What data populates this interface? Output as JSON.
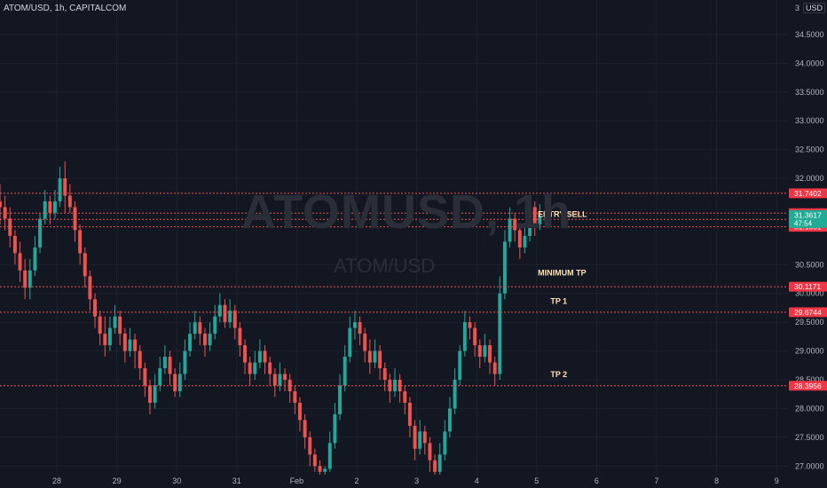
{
  "header": {
    "symbol_title": "ATOM/USD, 1h, CAPITALCOM",
    "currency": "USD"
  },
  "watermark": {
    "main": "ATOMUSD, 1h",
    "sub": "ATOM/USD"
  },
  "colors": {
    "background": "#131722",
    "up": "#26a69a",
    "down": "#ef5350",
    "grid": "#1e222d",
    "level_line": "#ef5350",
    "axis_text": "#b2b5be",
    "annotation_text": "#ffe0b2",
    "price_tag_text": "#ffffff"
  },
  "chart_data": {
    "type": "candlestick",
    "y_axis": {
      "ticks": [
        "34.5000",
        "34.0000",
        "33.5000",
        "33.0000",
        "32.5000",
        "32.0000",
        "30.5000",
        "30.0000",
        "29.5000",
        "29.0000",
        "28.5000",
        "28.0000",
        "27.5000",
        "27.0000"
      ],
      "range": [
        26.85,
        35.1
      ],
      "top_label_partial": "3"
    },
    "x_axis": {
      "ticks": [
        "28",
        "29",
        "30",
        "31",
        "Feb",
        "2",
        "3",
        "4",
        "5",
        "6",
        "7",
        "8",
        "9"
      ]
    },
    "levels": [
      {
        "price": 31.7402,
        "label": "31.7402",
        "bg": "#f23645"
      },
      {
        "price": 31.3959,
        "label": "31.3959",
        "bg": "#f23645"
      },
      {
        "price": 31.2877,
        "label": "31.2877",
        "bg": "#f23645"
      },
      {
        "price": 31.1581,
        "label": "31.1581",
        "bg": "#f23645"
      },
      {
        "price": 30.1171,
        "label": "30.1171",
        "bg": "#f23645"
      },
      {
        "price": 29.6744,
        "label": "29.6744",
        "bg": "#f23645"
      },
      {
        "price": 28.3956,
        "label": "28.3956",
        "bg": "#f23645"
      }
    ],
    "current_price": {
      "price": 31.3617,
      "label": "31.3617",
      "countdown": "47:54",
      "bg": "#22ab94"
    },
    "annotations": [
      {
        "text": "ENTRY SELL",
        "price": 31.33,
        "x_day": 8.02
      },
      {
        "text": "MINIMUM TP",
        "price": 30.31,
        "x_day": 8.02
      },
      {
        "text": "TP 1",
        "price": 29.82,
        "x_day": 8.23
      },
      {
        "text": "TP 2",
        "price": 28.55,
        "x_day": 8.23
      }
    ],
    "candles": [
      [
        31.6,
        31.5,
        31.9,
        31.2
      ],
      [
        31.5,
        31.3,
        31.7,
        31.1
      ],
      [
        31.3,
        31.0,
        31.5,
        30.8
      ],
      [
        31.0,
        30.7,
        31.1,
        30.5
      ],
      [
        30.7,
        30.4,
        30.9,
        30.2
      ],
      [
        30.4,
        30.1,
        30.6,
        29.9
      ],
      [
        30.1,
        30.4,
        30.6,
        29.9
      ],
      [
        30.4,
        30.8,
        31.0,
        30.3
      ],
      [
        30.8,
        31.3,
        31.4,
        30.7
      ],
      [
        31.3,
        31.6,
        31.8,
        31.2
      ],
      [
        31.6,
        31.4,
        31.7,
        31.2
      ],
      [
        31.4,
        31.6,
        31.8,
        31.3
      ],
      [
        31.6,
        32.0,
        32.2,
        31.5
      ],
      [
        32.0,
        31.7,
        32.3,
        31.4
      ],
      [
        31.7,
        31.5,
        31.9,
        31.4
      ],
      [
        31.5,
        31.1,
        31.6,
        30.9
      ],
      [
        31.1,
        30.7,
        31.2,
        30.5
      ],
      [
        30.7,
        30.3,
        30.8,
        30.1
      ],
      [
        30.3,
        29.9,
        30.4,
        29.7
      ],
      [
        29.9,
        29.6,
        30.0,
        29.4
      ],
      [
        29.6,
        29.3,
        29.7,
        29.1
      ],
      [
        29.3,
        29.1,
        29.6,
        28.9
      ],
      [
        29.1,
        29.4,
        29.6,
        29.0
      ],
      [
        29.4,
        29.6,
        29.8,
        29.3
      ],
      [
        29.6,
        29.3,
        29.7,
        29.1
      ],
      [
        29.3,
        29.0,
        29.4,
        28.8
      ],
      [
        29.0,
        29.2,
        29.4,
        28.9
      ],
      [
        29.2,
        29.0,
        29.3,
        28.7
      ],
      [
        29.0,
        28.7,
        29.1,
        28.5
      ],
      [
        28.7,
        28.4,
        28.8,
        28.2
      ],
      [
        28.4,
        28.1,
        28.5,
        27.9
      ],
      [
        28.1,
        28.4,
        28.6,
        28.0
      ],
      [
        28.4,
        28.7,
        28.9,
        28.3
      ],
      [
        28.7,
        28.9,
        29.1,
        28.6
      ],
      [
        28.9,
        28.6,
        29.0,
        28.4
      ],
      [
        28.6,
        28.3,
        28.7,
        28.2
      ],
      [
        28.3,
        28.6,
        28.8,
        28.2
      ],
      [
        28.6,
        29.0,
        29.2,
        28.5
      ],
      [
        29.0,
        29.3,
        29.5,
        28.9
      ],
      [
        29.3,
        29.5,
        29.7,
        29.2
      ],
      [
        29.5,
        29.3,
        29.6,
        29.1
      ],
      [
        29.3,
        29.1,
        29.4,
        28.9
      ],
      [
        29.1,
        29.3,
        29.5,
        29.0
      ],
      [
        29.3,
        29.6,
        29.8,
        29.2
      ],
      [
        29.6,
        29.8,
        30.0,
        29.5
      ],
      [
        29.8,
        29.5,
        29.9,
        29.4
      ],
      [
        29.5,
        29.7,
        29.9,
        29.4
      ],
      [
        29.7,
        29.4,
        29.8,
        29.2
      ],
      [
        29.4,
        29.1,
        29.5,
        28.9
      ],
      [
        29.1,
        28.8,
        29.2,
        28.6
      ],
      [
        28.8,
        28.6,
        28.9,
        28.4
      ],
      [
        28.6,
        28.8,
        29.0,
        28.5
      ],
      [
        28.8,
        29.0,
        29.2,
        28.7
      ],
      [
        29.0,
        28.8,
        29.1,
        28.6
      ],
      [
        28.8,
        28.6,
        28.9,
        28.4
      ],
      [
        28.6,
        28.4,
        28.7,
        28.2
      ],
      [
        28.4,
        28.6,
        28.8,
        28.3
      ],
      [
        28.6,
        28.5,
        28.7,
        28.3
      ],
      [
        28.5,
        28.3,
        28.6,
        28.1
      ],
      [
        28.3,
        28.1,
        28.4,
        27.9
      ],
      [
        28.1,
        27.8,
        28.2,
        27.6
      ],
      [
        27.8,
        27.5,
        27.9,
        27.3
      ],
      [
        27.5,
        27.2,
        27.6,
        27.0
      ],
      [
        27.2,
        27.0,
        27.3,
        26.9
      ],
      [
        27.0,
        26.9,
        27.1,
        26.8
      ],
      [
        26.9,
        26.95,
        27.0,
        26.85
      ],
      [
        26.95,
        27.4,
        27.6,
        26.9
      ],
      [
        27.4,
        27.9,
        28.1,
        27.3
      ],
      [
        27.9,
        28.4,
        28.6,
        27.8
      ],
      [
        28.4,
        28.9,
        29.1,
        28.3
      ],
      [
        28.9,
        29.4,
        29.6,
        28.8
      ],
      [
        29.4,
        29.5,
        29.7,
        29.2
      ],
      [
        29.5,
        29.3,
        29.6,
        29.1
      ],
      [
        29.3,
        29.0,
        29.4,
        28.8
      ],
      [
        29.0,
        28.8,
        29.2,
        28.6
      ],
      [
        28.8,
        29.0,
        29.2,
        28.7
      ],
      [
        29.0,
        28.7,
        29.1,
        28.5
      ],
      [
        28.7,
        28.5,
        28.8,
        28.3
      ],
      [
        28.5,
        28.3,
        28.6,
        28.1
      ],
      [
        28.3,
        28.5,
        28.7,
        28.2
      ],
      [
        28.5,
        28.3,
        28.6,
        28.1
      ],
      [
        28.3,
        28.1,
        28.4,
        27.9
      ],
      [
        28.1,
        27.7,
        28.2,
        27.5
      ],
      [
        27.7,
        27.3,
        27.8,
        27.1
      ],
      [
        27.3,
        27.6,
        27.8,
        27.2
      ],
      [
        27.6,
        27.4,
        27.7,
        27.2
      ],
      [
        27.4,
        27.1,
        27.5,
        26.9
      ],
      [
        27.1,
        26.9,
        27.2,
        26.8
      ],
      [
        26.9,
        27.2,
        27.4,
        26.85
      ],
      [
        27.2,
        27.6,
        27.8,
        27.1
      ],
      [
        27.6,
        28.0,
        28.2,
        27.5
      ],
      [
        28.0,
        28.5,
        28.7,
        27.9
      ],
      [
        28.5,
        29.0,
        29.1,
        28.4
      ],
      [
        29.0,
        29.5,
        29.7,
        28.9
      ],
      [
        29.5,
        29.4,
        29.6,
        29.2
      ],
      [
        29.4,
        29.1,
        29.5,
        28.9
      ],
      [
        29.1,
        28.9,
        29.2,
        28.7
      ],
      [
        28.9,
        29.1,
        29.3,
        28.8
      ],
      [
        29.1,
        28.8,
        29.2,
        28.6
      ],
      [
        28.8,
        28.6,
        28.9,
        28.4
      ],
      [
        28.6,
        30.0,
        30.3,
        28.5
      ],
      [
        30.0,
        30.9,
        31.1,
        29.9
      ],
      [
        30.9,
        31.3,
        31.5,
        30.8
      ],
      [
        31.3,
        31.1,
        31.4,
        30.9
      ],
      [
        31.1,
        30.8,
        31.2,
        30.6
      ],
      [
        30.8,
        31.0,
        31.2,
        30.7
      ],
      [
        31.0,
        31.5,
        31.7,
        30.9
      ],
      [
        31.5,
        31.2,
        31.6,
        31.0
      ],
      [
        31.2,
        31.35,
        31.55,
        31.1
      ],
      [
        31.35,
        31.36,
        31.45,
        31.25
      ]
    ]
  }
}
